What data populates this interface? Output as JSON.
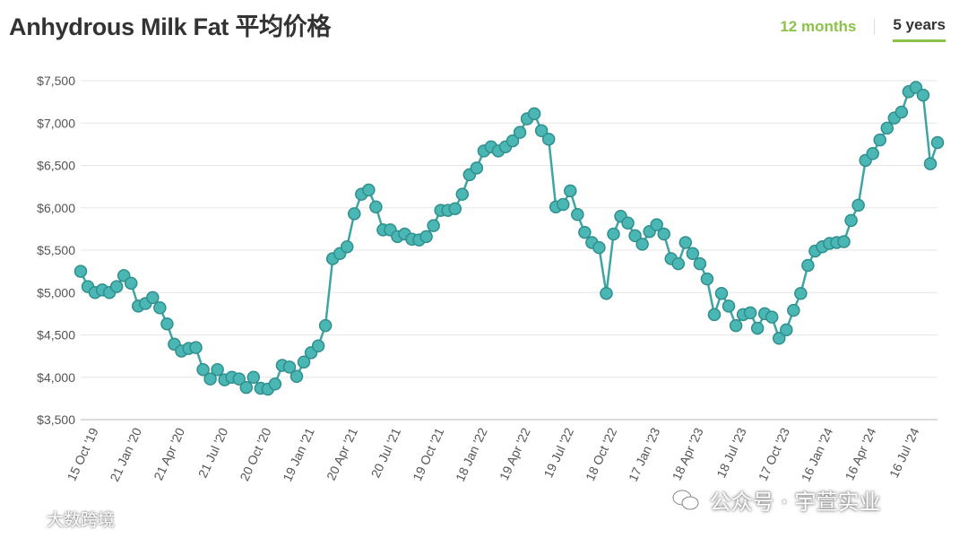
{
  "header": {
    "title": "Anhydrous Milk Fat 平均价格",
    "tabs": [
      {
        "label": "12 months",
        "active": false
      },
      {
        "label": "5 years",
        "active": true
      }
    ]
  },
  "watermarks": {
    "left": "大数跨境",
    "right": "公众号 · 宇萱实业"
  },
  "colors": {
    "line": "#3fa5a3",
    "marker_fill": "#4bb7b5",
    "marker_stroke": "#2f8f8d",
    "accent": "#8bc34a",
    "grid": "#e6e6e6"
  },
  "chart_data": {
    "type": "line",
    "title": "Anhydrous Milk Fat 平均价格",
    "xlabel": "",
    "ylabel": "",
    "ylim": [
      3500,
      7500
    ],
    "y_ticks": [
      3500,
      4000,
      4500,
      5000,
      5500,
      6000,
      6500,
      7000,
      7500
    ],
    "y_tick_labels": [
      "$3,500",
      "$4,000",
      "$4,500",
      "$5,000",
      "$5,500",
      "$6,000",
      "$6,500",
      "$7,000",
      "$7,500"
    ],
    "x_tick_labels": [
      "15 Oct '19",
      "21 Jan '20",
      "21 Apr '20",
      "21 Jul '20",
      "20 Oct '20",
      "19 Jan '21",
      "20 Apr '21",
      "20 Jul '21",
      "19 Oct '21",
      "18 Jan '22",
      "19 Apr '22",
      "19 Jul '22",
      "18 Oct '22",
      "17 Jan '23",
      "18 Apr '23",
      "18 Jul '23",
      "17 Oct '23",
      "16 Jan '24",
      "16 Apr '24",
      "16 Jul '24"
    ],
    "x_tick_index": [
      2,
      8,
      14,
      20,
      26,
      32,
      38,
      44,
      50,
      56,
      62,
      68,
      74,
      80,
      86,
      92,
      98,
      104,
      110,
      116
    ],
    "grid": true,
    "legend": "none",
    "series": [
      {
        "values": [
          5250,
          5070,
          5000,
          5030,
          5000,
          5070,
          5200,
          5110,
          4840,
          4870,
          4940,
          4820,
          4630,
          4390,
          4310,
          4340,
          4350,
          4090,
          3980,
          4090,
          3970,
          4000,
          3980,
          3880,
          4000,
          3870,
          3860,
          3920,
          4140,
          4120,
          4010,
          4180,
          4290,
          4370,
          4610,
          5400,
          5460,
          5540,
          5930,
          6160,
          6210,
          6010,
          5740,
          5740,
          5660,
          5690,
          5630,
          5620,
          5660,
          5790,
          5970,
          5970,
          5990,
          6160,
          6390,
          6470,
          6670,
          6720,
          6670,
          6720,
          6790,
          6890,
          7050,
          7110,
          6910,
          6810,
          6010,
          6040,
          6200,
          5920,
          5710,
          5590,
          5530,
          4990,
          5690,
          5900,
          5820,
          5670,
          5570,
          5720,
          5800,
          5690,
          5400,
          5340,
          5590,
          5460,
          5340,
          5160,
          4740,
          4990,
          4840,
          4610,
          4740,
          4760,
          4580,
          4750,
          4710,
          4460,
          4560,
          4790,
          4990,
          5320,
          5490,
          5540,
          5580,
          5590,
          5600,
          5850,
          6030,
          6560,
          6640,
          6800,
          6940,
          7060,
          7130,
          7370,
          7420,
          7330,
          6520,
          6770
        ]
      }
    ]
  }
}
